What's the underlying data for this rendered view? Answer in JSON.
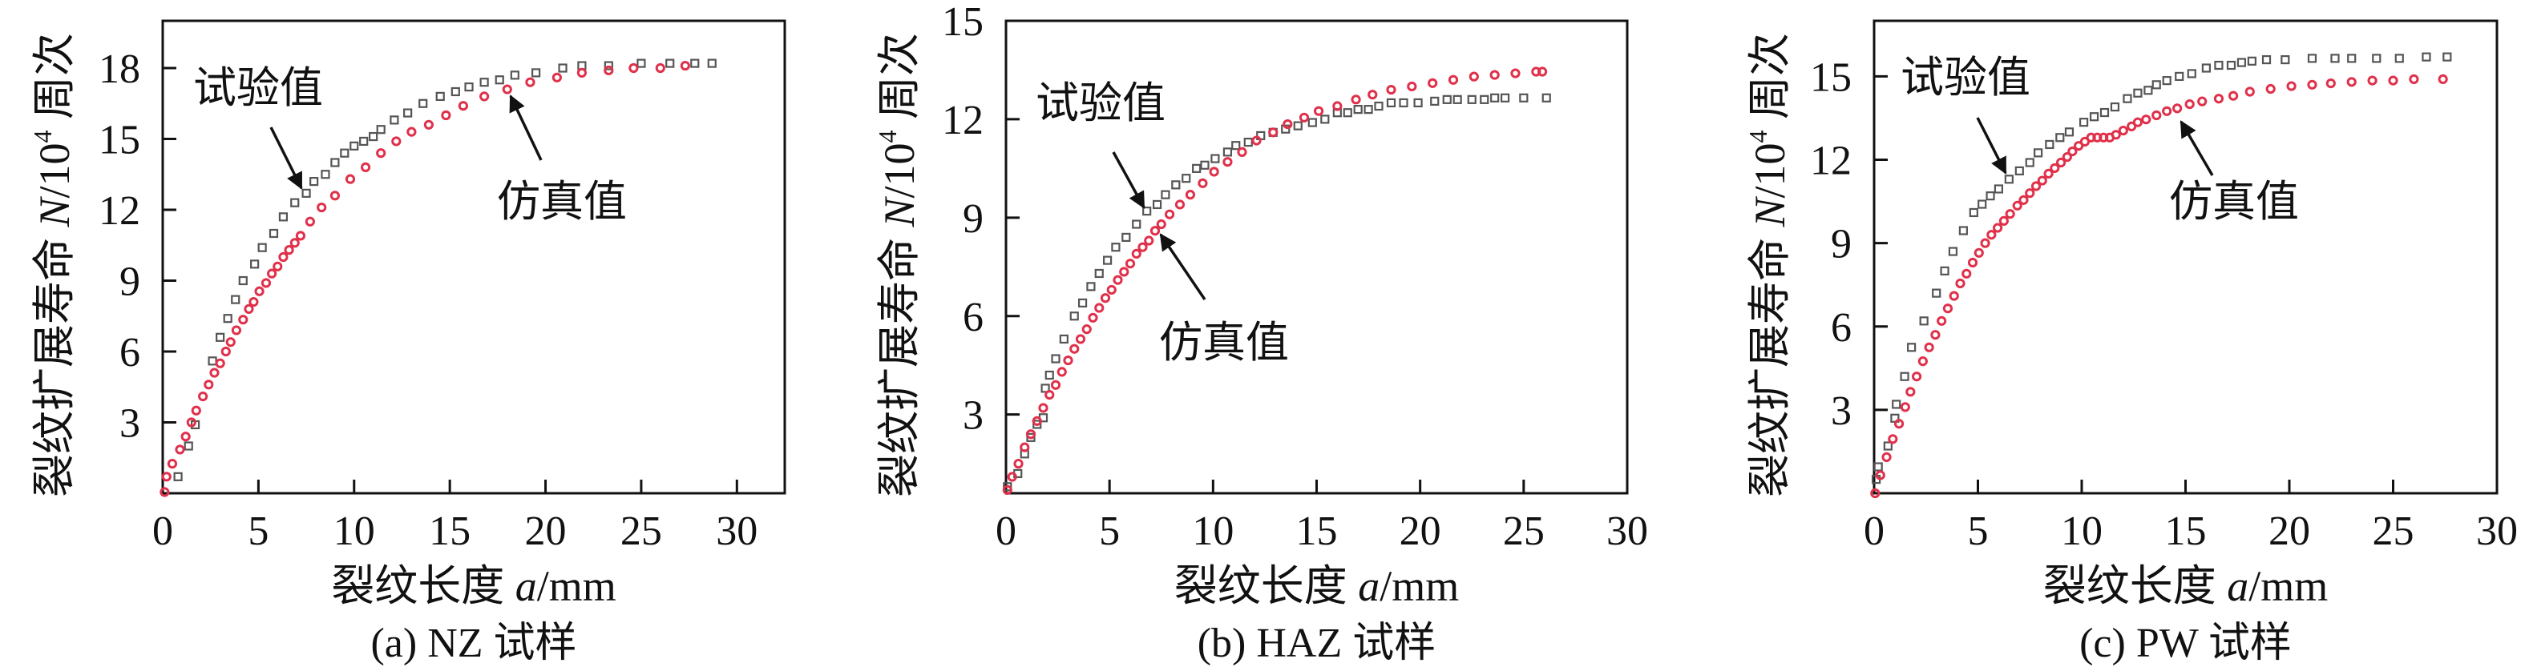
{
  "legend": {
    "experimental": "试验值",
    "simulated": "仿真值"
  },
  "colors": {
    "experimental": "#555555",
    "simulated": "#e0304a",
    "axis": "#111111"
  },
  "chart_data": [
    {
      "type": "scatter",
      "title": "(a) NZ 试样",
      "xlabel": {
        "main": "裂纹长度 ",
        "var": "a",
        "unit": "/mm"
      },
      "ylabel": {
        "main": "裂纹扩展寿命 ",
        "var": "N",
        "unit": "/10",
        "sup": "4",
        "tail": " 周次"
      },
      "xlim": [
        0,
        32.5
      ],
      "ylim": [
        0,
        20
      ],
      "xticks": [
        "0",
        "5",
        "10",
        "15",
        "20",
        "25",
        "30"
      ],
      "yticks": [
        "3",
        "6",
        "9",
        "12",
        "15",
        "18"
      ],
      "annotations": [
        "试验值",
        "仿真值"
      ],
      "series": [
        {
          "name": "试验值",
          "marker": "square",
          "x": [
            0.8,
            1.35,
            1.7,
            2.6,
            3.0,
            3.4,
            3.8,
            4.2,
            4.8,
            5.2,
            5.8,
            6.3,
            6.9,
            7.5,
            7.9,
            8.5,
            9.0,
            9.5,
            10.0,
            10.5,
            11.0,
            11.4,
            12.1,
            12.8,
            13.6,
            14.5,
            15.3,
            16.0,
            16.8,
            17.6,
            18.4,
            19.5,
            20.9,
            21.9,
            23.3,
            25.0,
            26.5,
            27.8,
            28.7
          ],
          "y": [
            0.7,
            2.0,
            2.9,
            5.6,
            6.6,
            7.4,
            8.2,
            9.0,
            9.7,
            10.4,
            11.0,
            11.7,
            12.3,
            12.7,
            13.2,
            13.5,
            14.0,
            14.4,
            14.7,
            14.9,
            15.1,
            15.4,
            15.8,
            16.1,
            16.5,
            16.8,
            17.0,
            17.2,
            17.4,
            17.5,
            17.7,
            17.8,
            18.0,
            18.1,
            18.1,
            18.2,
            18.2,
            18.2,
            18.2
          ]
        },
        {
          "name": "仿真值",
          "marker": "circle",
          "x": [
            0.1,
            0.2,
            0.5,
            0.9,
            1.2,
            1.5,
            1.75,
            2.1,
            2.4,
            2.7,
            3.0,
            3.3,
            3.55,
            3.85,
            4.2,
            4.5,
            4.75,
            5.05,
            5.4,
            5.7,
            6.0,
            6.3,
            6.6,
            6.9,
            7.2,
            7.7,
            8.3,
            9.0,
            9.8,
            10.6,
            11.4,
            12.2,
            13.0,
            13.9,
            14.8,
            15.7,
            16.8,
            18.0,
            19.2,
            20.6,
            21.9,
            23.3,
            24.6,
            26.0,
            27.3
          ],
          "y": [
            0.05,
            0.7,
            1.25,
            1.85,
            2.4,
            3.0,
            3.5,
            4.1,
            4.6,
            5.1,
            5.5,
            6.0,
            6.4,
            6.9,
            7.35,
            7.8,
            8.1,
            8.55,
            8.9,
            9.3,
            9.6,
            10.0,
            10.3,
            10.6,
            10.9,
            11.5,
            12.1,
            12.6,
            13.3,
            13.8,
            14.4,
            14.9,
            15.3,
            15.6,
            16.0,
            16.4,
            16.8,
            17.1,
            17.4,
            17.6,
            17.8,
            17.9,
            18.0,
            18.0,
            18.1
          ]
        }
      ]
    },
    {
      "type": "scatter",
      "title": "(b) HAZ 试样",
      "xlabel": {
        "main": "裂纹长度 ",
        "var": "a",
        "unit": "/mm"
      },
      "ylabel": {
        "main": "裂纹扩展寿命 ",
        "var": "N",
        "unit": "/10",
        "sup": "4",
        "tail": " 周次"
      },
      "xlim": [
        0,
        30
      ],
      "ylim": [
        0.6,
        15
      ],
      "xticks": [
        "0",
        "5",
        "10",
        "15",
        "20",
        "25",
        "30"
      ],
      "yticks": [
        "3",
        "6",
        "9",
        "12",
        "15"
      ],
      "annotations": [
        "试验值",
        "仿真值"
      ],
      "series": [
        {
          "name": "试验值",
          "marker": "square",
          "x": [
            0.07,
            0.57,
            0.9,
            1.2,
            1.5,
            1.8,
            1.9,
            2.1,
            2.4,
            2.8,
            3.3,
            3.7,
            4.1,
            4.5,
            4.9,
            5.3,
            5.8,
            6.3,
            6.8,
            7.3,
            7.7,
            8.2,
            8.7,
            9.2,
            9.6,
            10.1,
            10.7,
            11.1,
            11.7,
            12.3,
            12.9,
            13.5,
            14.1,
            14.8,
            15.4,
            16.0,
            16.5,
            17.0,
            17.5,
            18.0,
            18.6,
            19.2,
            19.9,
            20.7,
            21.3,
            21.8,
            22.5,
            23.1,
            23.6,
            24.1,
            25.0,
            26.1
          ],
          "y": [
            0.8,
            1.2,
            1.8,
            2.3,
            2.7,
            2.9,
            3.8,
            4.2,
            4.7,
            5.3,
            6.0,
            6.4,
            6.9,
            7.3,
            7.7,
            8.1,
            8.4,
            8.8,
            9.2,
            9.4,
            9.7,
            10.0,
            10.2,
            10.5,
            10.6,
            10.8,
            11.0,
            11.2,
            11.3,
            11.5,
            11.6,
            11.7,
            11.8,
            11.9,
            12.0,
            12.2,
            12.2,
            12.3,
            12.3,
            12.4,
            12.5,
            12.5,
            12.5,
            12.55,
            12.6,
            12.6,
            12.6,
            12.6,
            12.65,
            12.65,
            12.65,
            12.65
          ]
        },
        {
          "name": "仿真值",
          "marker": "circle",
          "x": [
            0.07,
            0.3,
            0.6,
            0.9,
            1.2,
            1.5,
            1.8,
            2.1,
            2.4,
            2.7,
            3.0,
            3.3,
            3.6,
            3.9,
            4.2,
            4.5,
            4.8,
            5.1,
            5.4,
            5.7,
            6.0,
            6.3,
            6.6,
            6.9,
            7.2,
            7.5,
            7.9,
            8.4,
            8.9,
            9.5,
            10.05,
            10.7,
            11.4,
            12.1,
            12.9,
            13.6,
            14.4,
            15.1,
            16.0,
            16.9,
            17.7,
            18.6,
            19.6,
            20.6,
            21.6,
            22.6,
            23.6,
            24.6,
            25.6,
            25.9
          ],
          "y": [
            0.7,
            1.1,
            1.5,
            2.0,
            2.4,
            2.8,
            3.2,
            3.6,
            3.9,
            4.3,
            4.65,
            5.0,
            5.3,
            5.6,
            5.95,
            6.25,
            6.55,
            6.8,
            7.1,
            7.35,
            7.6,
            7.9,
            8.1,
            8.3,
            8.6,
            8.8,
            9.1,
            9.4,
            9.7,
            10.05,
            10.4,
            10.7,
            11.0,
            11.35,
            11.6,
            11.85,
            12.05,
            12.25,
            12.4,
            12.6,
            12.75,
            12.9,
            13.0,
            13.1,
            13.2,
            13.3,
            13.35,
            13.4,
            13.45,
            13.45
          ]
        }
      ]
    },
    {
      "type": "scatter",
      "title": "(c) PW 试样",
      "xlabel": {
        "main": "裂纹长度 ",
        "var": "a",
        "unit": "/mm"
      },
      "ylabel": {
        "main": "裂纹扩展寿命 ",
        "var": "N",
        "unit": "/10",
        "sup": "4",
        "tail": " 周次"
      },
      "xlim": [
        0,
        30
      ],
      "ylim": [
        0,
        17
      ],
      "xticks": [
        "0",
        "5",
        "10",
        "15",
        "20",
        "25",
        "30"
      ],
      "yticks": [
        "3",
        "6",
        "9",
        "12",
        "15"
      ],
      "annotations": [
        "试验值",
        "仿真值"
      ],
      "series": [
        {
          "name": "试验值",
          "marker": "square",
          "x": [
            0.1,
            0.2,
            0.67,
            1.0,
            1.07,
            1.47,
            1.8,
            2.4,
            3.0,
            3.4,
            3.8,
            4.3,
            4.8,
            5.2,
            5.6,
            6.0,
            6.5,
            7.0,
            7.5,
            7.9,
            8.45,
            8.95,
            9.4,
            10.1,
            10.6,
            11.1,
            11.6,
            12.2,
            12.7,
            13.2,
            13.6,
            14.1,
            14.7,
            15.3,
            16.0,
            16.6,
            17.2,
            17.7,
            18.2,
            18.9,
            19.8,
            21.1,
            22.2,
            23.0,
            24.2,
            25.3,
            26.6,
            27.6
          ],
          "y": [
            0.5,
            0.95,
            1.7,
            2.7,
            3.2,
            4.2,
            5.25,
            6.2,
            7.2,
            8.0,
            8.7,
            9.45,
            10.1,
            10.4,
            10.7,
            10.95,
            11.3,
            11.6,
            11.9,
            12.25,
            12.55,
            12.8,
            13.0,
            13.35,
            13.55,
            13.7,
            13.9,
            14.2,
            14.4,
            14.5,
            14.7,
            14.85,
            15.0,
            15.1,
            15.3,
            15.4,
            15.4,
            15.5,
            15.55,
            15.6,
            15.6,
            15.65,
            15.65,
            15.65,
            15.65,
            15.65,
            15.7,
            15.7
          ]
        },
        {
          "name": "仿真值",
          "marker": "circle",
          "x": [
            0.05,
            0.3,
            0.6,
            0.9,
            1.2,
            1.5,
            1.75,
            2.05,
            2.35,
            2.65,
            2.95,
            3.25,
            3.55,
            3.85,
            4.15,
            4.45,
            4.75,
            5.05,
            5.35,
            5.65,
            5.95,
            6.25,
            6.55,
            6.9,
            7.2,
            7.5,
            7.8,
            8.1,
            8.4,
            8.7,
            9.0,
            9.3,
            9.55,
            9.85,
            10.15,
            10.45,
            10.75,
            11.05,
            11.35,
            11.65,
            12.0,
            12.4,
            12.7,
            13.1,
            13.6,
            14.1,
            14.6,
            15.2,
            15.8,
            16.6,
            17.3,
            18.1,
            19.1,
            20.1,
            21.1,
            22.0,
            23.0,
            24.0,
            25.0,
            26.0,
            27.4
          ],
          "y": [
            0.0,
            0.65,
            1.3,
            1.95,
            2.5,
            3.1,
            3.65,
            4.2,
            4.75,
            5.25,
            5.7,
            6.2,
            6.65,
            7.1,
            7.55,
            7.9,
            8.3,
            8.65,
            9.0,
            9.3,
            9.55,
            9.8,
            10.05,
            10.35,
            10.55,
            10.8,
            11.05,
            11.25,
            11.5,
            11.7,
            11.9,
            12.1,
            12.3,
            12.5,
            12.65,
            12.8,
            12.8,
            12.8,
            12.8,
            12.9,
            13.05,
            13.2,
            13.35,
            13.45,
            13.6,
            13.75,
            13.85,
            14.0,
            14.1,
            14.2,
            14.3,
            14.45,
            14.55,
            14.65,
            14.7,
            14.75,
            14.8,
            14.85,
            14.85,
            14.9,
            14.9
          ]
        }
      ]
    }
  ]
}
